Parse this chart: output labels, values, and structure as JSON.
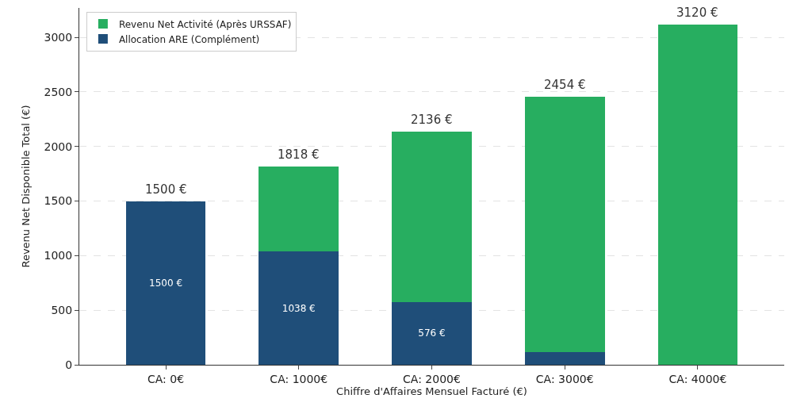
{
  "chart_data": {
    "type": "bar",
    "stacked": true,
    "xlabel": "Chiffre d'Affaires Mensuel Facturé (€)",
    "ylabel": "Revenu Net Disponible Total (€)",
    "categories": [
      "CA: 0€",
      "CA: 1000€",
      "CA: 2000€",
      "CA: 3000€",
      "CA: 4000€"
    ],
    "series": [
      {
        "name": "Allocation ARE (Complément)",
        "color": "#1f4e79",
        "values": [
          1500,
          1038,
          576,
          114,
          0
        ],
        "value_labels": [
          "1500 €",
          "1038 €",
          "576 €",
          null,
          null
        ]
      },
      {
        "name": "Revenu Net Activité (Après URSSAF)",
        "color": "#27ae60",
        "values": [
          0,
          780,
          1560,
          2340,
          3120
        ]
      }
    ],
    "totals": [
      "1500 €",
      "1818 €",
      "2136 €",
      "2454 €",
      "3120 €"
    ],
    "ylim": [
      0,
      3270
    ],
    "yticks": [
      0,
      500,
      1000,
      1500,
      2000,
      2500,
      3000
    ],
    "grid": "y",
    "legend": "top left"
  }
}
